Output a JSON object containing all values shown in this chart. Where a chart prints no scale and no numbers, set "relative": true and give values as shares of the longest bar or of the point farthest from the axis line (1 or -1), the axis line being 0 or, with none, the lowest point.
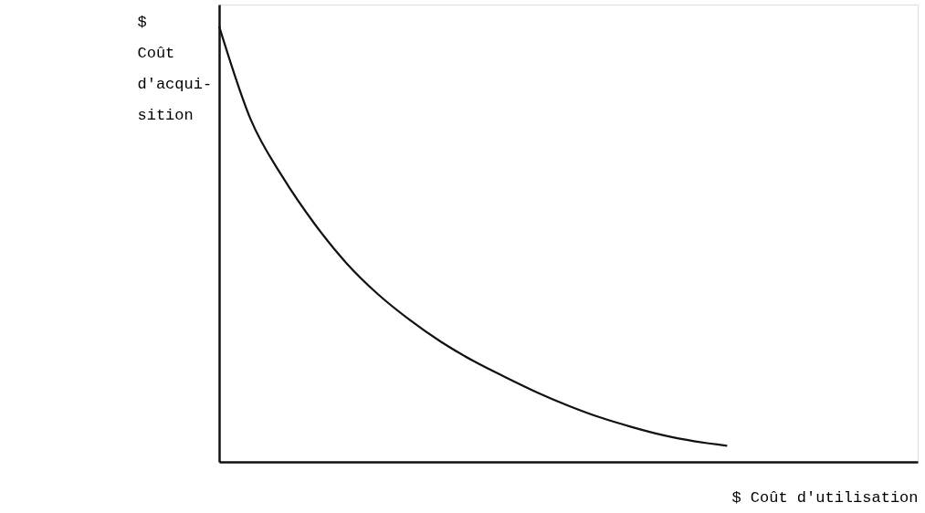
{
  "chart_data": {
    "type": "line",
    "relative": true,
    "xlabel": "$ Coût d'utilisation",
    "ylabel": "$\nCoût\nd'acqui-\nsition",
    "grid": false,
    "line_style": "solid",
    "categories": [
      null,
      null,
      null,
      null,
      null,
      null,
      null,
      null,
      null,
      null,
      null,
      null,
      null,
      null,
      null,
      null,
      null,
      null,
      null,
      null,
      null,
      null,
      null
    ],
    "series": [
      {
        "color": "#111111",
        "values": [
          1,
          0.785,
          0.654,
          0.547,
          0.457,
          0.385,
          0.326,
          0.275,
          0.232,
          0.195,
          0.16,
          0.129,
          0.102,
          0.08,
          0.061,
          0.047,
          0.037,
          null,
          null,
          null,
          null,
          null,
          null
        ]
      }
    ]
  }
}
